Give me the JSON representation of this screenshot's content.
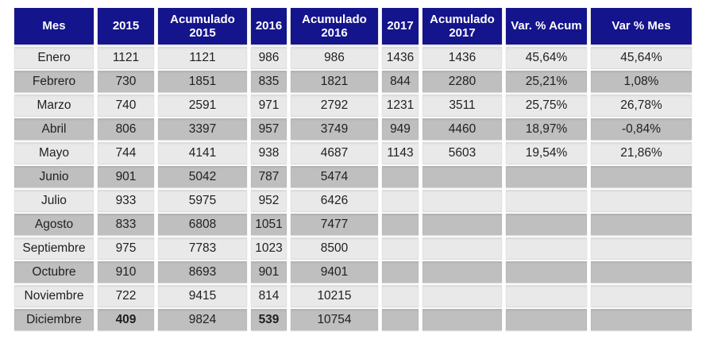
{
  "colors": {
    "header_bg": "#14148C",
    "header_text": "#FFFFFF",
    "row_light": "#E9E9E9",
    "row_dark": "#BFBFBF",
    "cell_text": "#1F1F1F",
    "page_bg": "#FFFFFF"
  },
  "table": {
    "columns": [
      {
        "key": "mes",
        "label": "Mes",
        "width": 100
      },
      {
        "key": "y2015",
        "label": "2015",
        "width": 71
      },
      {
        "key": "acum2015",
        "label": "Acumulado 2015",
        "width": 112
      },
      {
        "key": "y2016",
        "label": "2016",
        "width": 45
      },
      {
        "key": "acum2016",
        "label": "Acumulado 2016",
        "width": 110
      },
      {
        "key": "y2017",
        "label": "2017",
        "width": 46
      },
      {
        "key": "acum2017",
        "label": "Acumulado 2017",
        "width": 100
      },
      {
        "key": "varacum",
        "label": "Var. % Acum",
        "width": 102
      },
      {
        "key": "varmes",
        "label": "Var % Mes",
        "width": 127
      }
    ],
    "rows": [
      {
        "mes": "Enero",
        "y2015": "1121",
        "acum2015": "1121",
        "y2016": "986",
        "acum2016": "986",
        "y2017": "1436",
        "acum2017": "1436",
        "varacum": "45,64%",
        "varmes": "45,64%",
        "bold": []
      },
      {
        "mes": "Febrero",
        "y2015": "730",
        "acum2015": "1851",
        "y2016": "835",
        "acum2016": "1821",
        "y2017": "844",
        "acum2017": "2280",
        "varacum": "25,21%",
        "varmes": "1,08%",
        "bold": []
      },
      {
        "mes": "Marzo",
        "y2015": "740",
        "acum2015": "2591",
        "y2016": "971",
        "acum2016": "2792",
        "y2017": "1231",
        "acum2017": "3511",
        "varacum": "25,75%",
        "varmes": "26,78%",
        "bold": []
      },
      {
        "mes": "Abril",
        "y2015": "806",
        "acum2015": "3397",
        "y2016": "957",
        "acum2016": "3749",
        "y2017": "949",
        "acum2017": "4460",
        "varacum": "18,97%",
        "varmes": "-0,84%",
        "bold": []
      },
      {
        "mes": "Mayo",
        "y2015": "744",
        "acum2015": "4141",
        "y2016": "938",
        "acum2016": "4687",
        "y2017": "1143",
        "acum2017": "5603",
        "varacum": "19,54%",
        "varmes": "21,86%",
        "bold": []
      },
      {
        "mes": "Junio",
        "y2015": "901",
        "acum2015": "5042",
        "y2016": "787",
        "acum2016": "5474",
        "y2017": "",
        "acum2017": "",
        "varacum": "",
        "varmes": "",
        "bold": []
      },
      {
        "mes": "Julio",
        "y2015": "933",
        "acum2015": "5975",
        "y2016": "952",
        "acum2016": "6426",
        "y2017": "",
        "acum2017": "",
        "varacum": "",
        "varmes": "",
        "bold": []
      },
      {
        "mes": "Agosto",
        "y2015": "833",
        "acum2015": "6808",
        "y2016": "1051",
        "acum2016": "7477",
        "y2017": "",
        "acum2017": "",
        "varacum": "",
        "varmes": "",
        "bold": []
      },
      {
        "mes": "Septiembre",
        "y2015": "975",
        "acum2015": "7783",
        "y2016": "1023",
        "acum2016": "8500",
        "y2017": "",
        "acum2017": "",
        "varacum": "",
        "varmes": "",
        "bold": []
      },
      {
        "mes": "Octubre",
        "y2015": "910",
        "acum2015": "8693",
        "y2016": "901",
        "acum2016": "9401",
        "y2017": "",
        "acum2017": "",
        "varacum": "",
        "varmes": "",
        "bold": []
      },
      {
        "mes": "Noviembre",
        "y2015": "722",
        "acum2015": "9415",
        "y2016": "814",
        "acum2016": "10215",
        "y2017": "",
        "acum2017": "",
        "varacum": "",
        "varmes": "",
        "bold": []
      },
      {
        "mes": "Diciembre",
        "y2015": "409",
        "acum2015": "9824",
        "y2016": "539",
        "acum2016": "10754",
        "y2017": "",
        "acum2017": "",
        "varacum": "",
        "varmes": "",
        "bold": [
          "y2015",
          "y2016"
        ]
      }
    ]
  }
}
